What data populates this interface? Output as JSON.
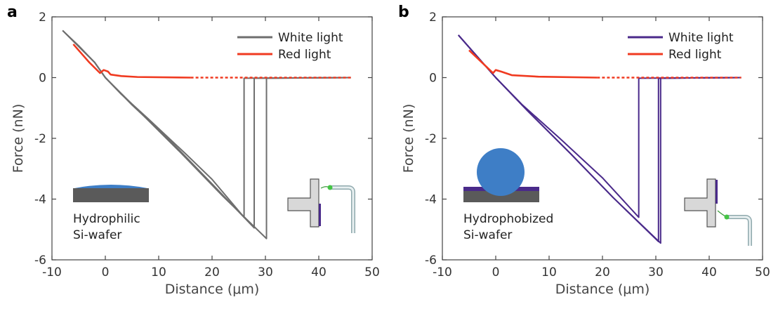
{
  "chart_data": [
    {
      "type": "line",
      "panel_label": "a",
      "xlabel": "Distance (μm)",
      "ylabel": "Force (nN)",
      "xlim": [
        -10,
        50
      ],
      "ylim": [
        -6,
        2
      ],
      "xticks": [
        -10,
        0,
        10,
        20,
        30,
        40,
        50
      ],
      "yticks": [
        2,
        0,
        -2,
        -4,
        -6
      ],
      "tick_labels_x": [
        "-10",
        "0",
        "10",
        "20",
        "30",
        "40",
        "50"
      ],
      "tick_labels_y": [
        "2",
        "0",
        "-2",
        "-4",
        "-6"
      ],
      "grid": false,
      "legend_placement": "top-right",
      "annotation": [
        "Hydrophilic",
        "Si-wafer"
      ],
      "series": [
        {
          "name": "White light",
          "color": "#6e6e6e",
          "curves": [
            [
              [
                -8,
                1.55
              ],
              [
                -5,
                1.05
              ],
              [
                -2,
                0.5
              ],
              [
                0,
                0
              ],
              [
                3,
                -0.55
              ],
              [
                8,
                -1.35
              ],
              [
                15,
                -2.5
              ],
              [
                20,
                -3.35
              ],
              [
                26,
                -4.6
              ],
              [
                26,
                -0.02
              ],
              [
                46,
                0
              ]
            ],
            [
              [
                -8,
                1.55
              ],
              [
                -2,
                0.5
              ],
              [
                0,
                0
              ],
              [
                5,
                -0.9
              ],
              [
                12,
                -2.05
              ],
              [
                20,
                -3.5
              ],
              [
                27.9,
                -4.95
              ],
              [
                27.9,
                -0.02
              ],
              [
                46,
                0
              ]
            ],
            [
              [
                -8,
                1.55
              ],
              [
                -2,
                0.5
              ],
              [
                0,
                0
              ],
              [
                6,
                -1.05
              ],
              [
                14,
                -2.45
              ],
              [
                22,
                -3.9
              ],
              [
                30.2,
                -5.3
              ],
              [
                30.2,
                -0.02
              ],
              [
                46,
                0
              ]
            ]
          ]
        },
        {
          "name": "Red light",
          "color": "#f03a20",
          "solid_x_range": [
            -6,
            16
          ],
          "dashed_x_range": [
            16,
            46
          ],
          "curves": [
            [
              [
                -6,
                1.1
              ],
              [
                -3,
                0.5
              ],
              [
                -1,
                0.15
              ],
              [
                -0.3,
                0.25
              ],
              [
                0.5,
                0.2
              ],
              [
                1,
                0.1
              ],
              [
                3,
                0.05
              ],
              [
                6,
                0.02
              ],
              [
                16,
                0
              ],
              [
                46,
                0
              ]
            ]
          ]
        }
      ]
    },
    {
      "type": "line",
      "panel_label": "b",
      "xlabel": "Distance (μm)",
      "ylabel": "Force (nN)",
      "xlim": [
        -10,
        50
      ],
      "ylim": [
        -6,
        2
      ],
      "xticks": [
        -10,
        0,
        10,
        20,
        30,
        40,
        50
      ],
      "yticks": [
        2,
        0,
        -2,
        -4,
        -6
      ],
      "tick_labels_x": [
        "-10",
        "0",
        "10",
        "20",
        "30",
        "40",
        "50"
      ],
      "tick_labels_y": [
        "2",
        "0",
        "-2",
        "-4",
        "-6"
      ],
      "grid": false,
      "legend_placement": "top-right",
      "annotation": [
        "Hydrophobized",
        "Si-wafer"
      ],
      "series": [
        {
          "name": "White light",
          "color": "#4a2a8a",
          "curves": [
            [
              [
                -7,
                1.4
              ],
              [
                -3,
                0.6
              ],
              [
                0,
                0
              ],
              [
                5,
                -0.9
              ],
              [
                12,
                -2.0
              ],
              [
                20,
                -3.3
              ],
              [
                26.8,
                -4.6
              ],
              [
                26.8,
                -0.02
              ],
              [
                46,
                0
              ]
            ],
            [
              [
                -7,
                1.4
              ],
              [
                -3,
                0.6
              ],
              [
                0,
                0
              ],
              [
                6,
                -1.1
              ],
              [
                14,
                -2.5
              ],
              [
                22,
                -3.95
              ],
              [
                30.5,
                -5.4
              ],
              [
                30.5,
                -0.02
              ],
              [
                46,
                0
              ]
            ],
            [
              [
                -7,
                1.4
              ],
              [
                -3,
                0.6
              ],
              [
                0,
                0
              ],
              [
                6,
                -1.1
              ],
              [
                14,
                -2.5
              ],
              [
                22,
                -3.95
              ],
              [
                30.9,
                -5.45
              ],
              [
                30.9,
                -0.02
              ],
              [
                46,
                0
              ]
            ]
          ]
        },
        {
          "name": "Red light",
          "color": "#f03a20",
          "solid_x_range": [
            -5,
            19
          ],
          "dashed_x_range": [
            19,
            46
          ],
          "curves": [
            [
              [
                -5,
                0.9
              ],
              [
                -2,
                0.4
              ],
              [
                -0.5,
                0.15
              ],
              [
                0,
                0.25
              ],
              [
                1,
                0.2
              ],
              [
                3,
                0.08
              ],
              [
                8,
                0.03
              ],
              [
                19,
                0
              ],
              [
                46,
                0
              ]
            ]
          ]
        }
      ]
    }
  ]
}
